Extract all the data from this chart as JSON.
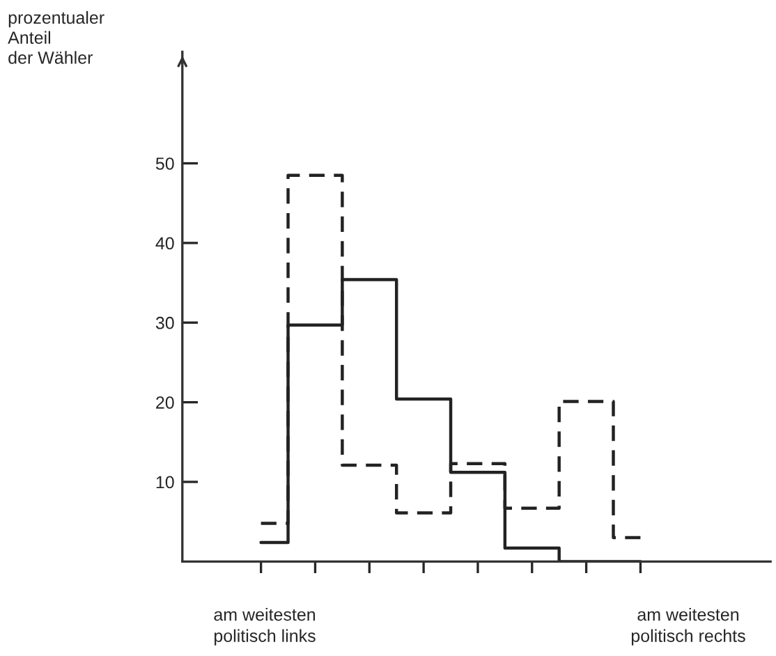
{
  "chart_data": {
    "type": "step",
    "ylabel": "prozentualer\nAnteil\nder Wähler",
    "categories": [
      null,
      null,
      null,
      null,
      null,
      null,
      null,
      null
    ],
    "series": [
      {
        "color": "#222222",
        "line_style": "solid",
        "values": [
          2.4,
          29.7,
          35.4,
          20.4,
          11.2,
          1.7,
          0,
          0
        ]
      },
      {
        "color": "#222222",
        "line_style": "dashed",
        "values": [
          4.8,
          48.5,
          12.1,
          6.1,
          12.3,
          6.7,
          20.1,
          3.0
        ]
      }
    ],
    "ylim": [
      0,
      64
    ],
    "yticks": [
      10,
      20,
      30,
      40,
      50
    ],
    "tick_labels": "y",
    "grid": false,
    "legend": false,
    "annotations": [
      "am weitesten\npolitisch links",
      "am weitesten\npolitisch rechts"
    ]
  }
}
